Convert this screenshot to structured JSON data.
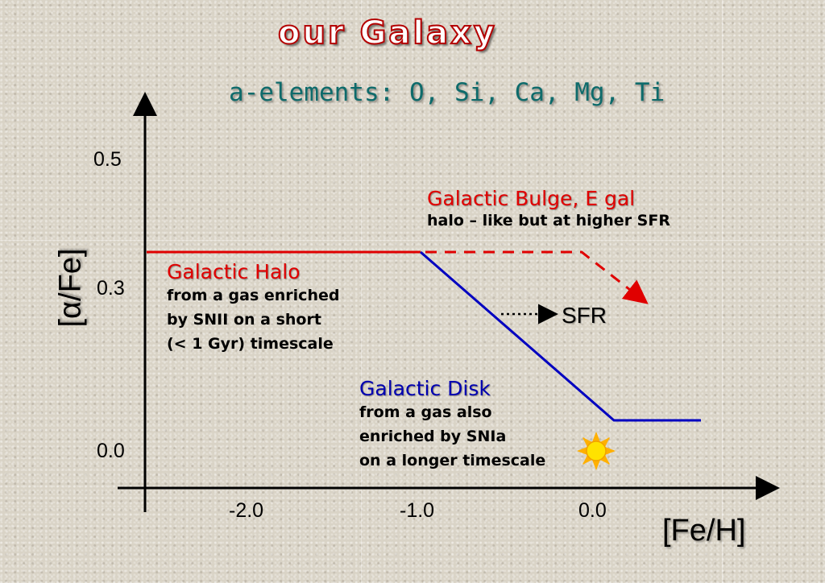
{
  "title": "our Galaxy",
  "subtitle": "a-elements: O, Si, Ca, Mg, Ti",
  "y_axis": {
    "label": "[α/Fe]",
    "ticks": [
      "0.5",
      "0.3",
      "0.0"
    ]
  },
  "x_axis": {
    "label": "[Fe/H]",
    "ticks": [
      "-2.0",
      "-1.0",
      "0.0"
    ]
  },
  "labels": {
    "halo": {
      "title": "Galactic Halo",
      "lines": [
        "from a gas enriched",
        "by SNII on a short",
        "(< 1 Gyr) timescale"
      ]
    },
    "disk": {
      "title": "Galactic Disk",
      "lines": [
        "from a gas also",
        "enriched by SNIa",
        "on a longer timescale"
      ]
    },
    "bulge": {
      "title": "Galactic Bulge, E gal",
      "subtitle": "halo – like but at higher SFR"
    },
    "sfr": "SFR"
  },
  "colors": {
    "halo": "#e00000",
    "disk": "#0000c0",
    "title_stroke": "#b40000",
    "subtitle": "#0e6b6b"
  },
  "icons": {
    "sun": "sun-icon"
  }
}
